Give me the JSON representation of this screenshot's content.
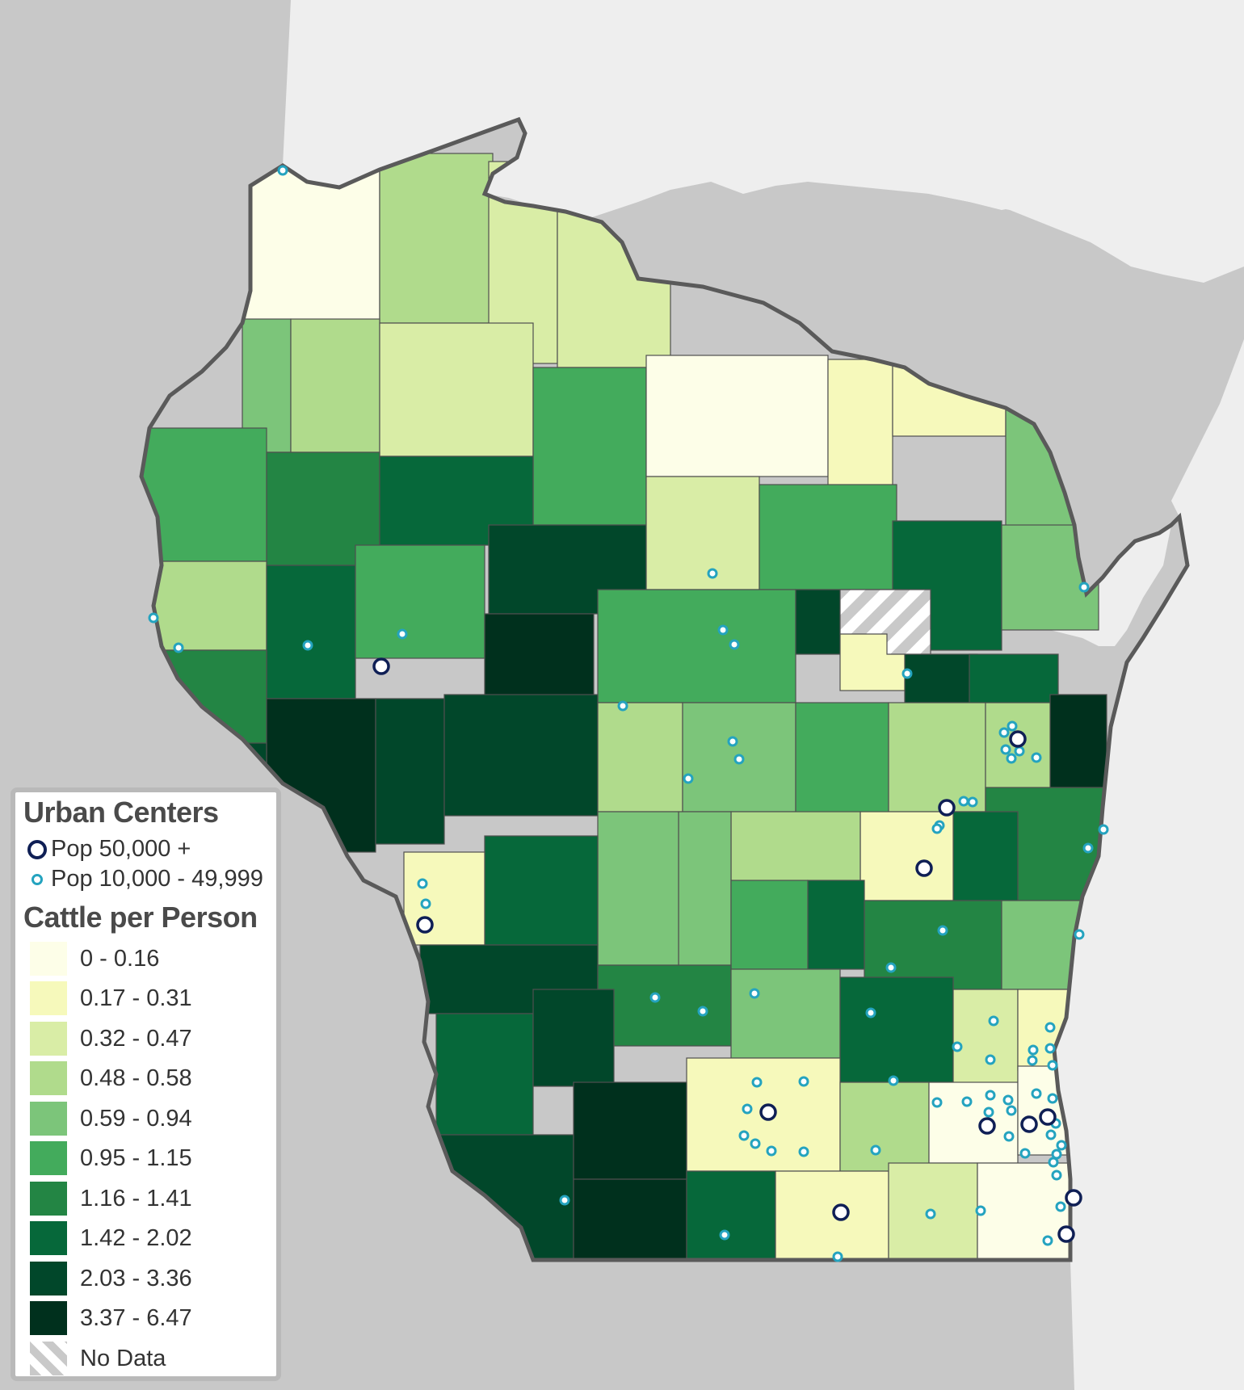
{
  "legend": {
    "urban_title": "Urban Centers",
    "pop_large": "Pop 50,000 +",
    "pop_small": "Pop 10,000 - 49,999",
    "cattle_title": "Cattle per Person",
    "classes": [
      {
        "label": "0 - 0.16",
        "color": "#fdfee8"
      },
      {
        "label": "0.17 - 0.31",
        "color": "#f6f9bb"
      },
      {
        "label": "0.32 - 0.47",
        "color": "#d9eda6"
      },
      {
        "label": "0.48 - 0.58",
        "color": "#b0db8c"
      },
      {
        "label": "0.59 - 0.94",
        "color": "#7cc57a"
      },
      {
        "label": "0.95 - 1.15",
        "color": "#43ab5c"
      },
      {
        "label": "1.16 - 1.41",
        "color": "#238544"
      },
      {
        "label": "1.42 - 2.02",
        "color": "#06683a"
      },
      {
        "label": "2.03 - 3.36",
        "color": "#01472a"
      },
      {
        "label": "3.37 - 6.47",
        "color": "#00301d"
      }
    ],
    "no_data": "No Data"
  },
  "colors": {
    "water": "#eeeeee",
    "land": "#c8c8c8",
    "border": "#585858",
    "city_large": "#0f1f55",
    "city_small": "#24a3bf"
  }
}
